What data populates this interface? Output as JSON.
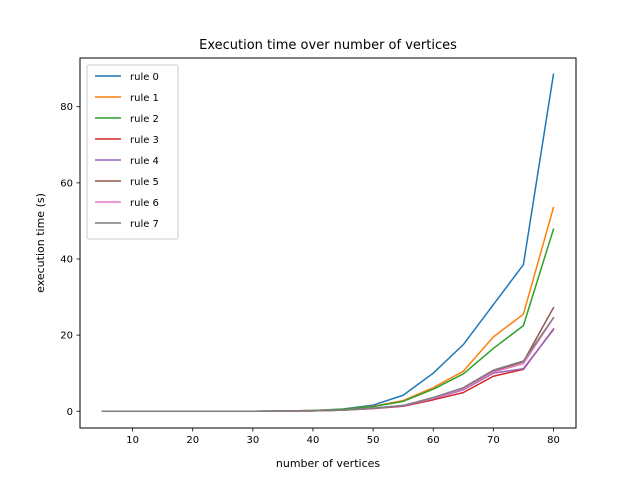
{
  "chart_data": {
    "type": "line",
    "title": "Execution time over number of vertices",
    "xlabel": "number of vertices",
    "ylabel": "execution time (s)",
    "xlim": [
      1.25,
      83.75
    ],
    "ylim": [
      -4.4,
      92.8
    ],
    "xticks": [
      10,
      20,
      30,
      40,
      50,
      60,
      70,
      80
    ],
    "yticks": [
      0,
      20,
      40,
      60,
      80
    ],
    "grid": false,
    "legend_position": "top-left",
    "x": [
      5,
      10,
      15,
      20,
      25,
      30,
      35,
      40,
      45,
      50,
      55,
      60,
      65,
      70,
      75,
      80
    ],
    "series": [
      {
        "name": "rule 0",
        "color": "#1f77b4",
        "values": [
          0,
          0,
          0,
          0,
          0,
          0,
          0.05,
          0.2,
          0.6,
          1.6,
          4.2,
          10.0,
          17.5,
          28.0,
          38.5,
          88.5
        ]
      },
      {
        "name": "rule 1",
        "color": "#ff7f0e",
        "values": [
          0,
          0,
          0,
          0,
          0,
          0,
          0.05,
          0.2,
          0.5,
          1.3,
          2.8,
          6.2,
          10.5,
          19.5,
          25.5,
          53.5
        ]
      },
      {
        "name": "rule 2",
        "color": "#2ca02c",
        "values": [
          0,
          0,
          0,
          0,
          0,
          0,
          0.05,
          0.2,
          0.5,
          1.2,
          2.6,
          5.8,
          9.8,
          16.5,
          22.5,
          47.8
        ]
      },
      {
        "name": "rule 3",
        "color": "#d62728",
        "values": [
          0,
          0,
          0,
          0,
          0,
          0,
          0.03,
          0.1,
          0.3,
          0.7,
          1.3,
          3.0,
          4.9,
          9.2,
          11.0,
          21.6
        ]
      },
      {
        "name": "rule 4",
        "color": "#9467bd",
        "values": [
          0,
          0,
          0,
          0,
          0,
          0,
          0.03,
          0.1,
          0.3,
          0.75,
          1.4,
          3.3,
          5.6,
          10.0,
          11.2,
          21.4
        ]
      },
      {
        "name": "rule 5",
        "color": "#8c564b",
        "values": [
          0,
          0,
          0,
          0,
          0,
          0,
          0.03,
          0.1,
          0.3,
          0.8,
          1.5,
          3.6,
          6.0,
          10.6,
          13.0,
          27.2
        ]
      },
      {
        "name": "rule 6",
        "color": "#e377c2",
        "values": [
          0,
          0,
          0,
          0,
          0,
          0,
          0.03,
          0.1,
          0.3,
          0.8,
          1.5,
          3.4,
          5.8,
          10.3,
          12.5,
          24.5
        ]
      },
      {
        "name": "rule 7",
        "color": "#7f7f7f",
        "values": [
          0,
          0,
          0,
          0,
          0,
          0,
          0.03,
          0.1,
          0.3,
          0.8,
          1.5,
          3.6,
          6.2,
          10.8,
          13.2,
          24.6
        ]
      }
    ]
  }
}
